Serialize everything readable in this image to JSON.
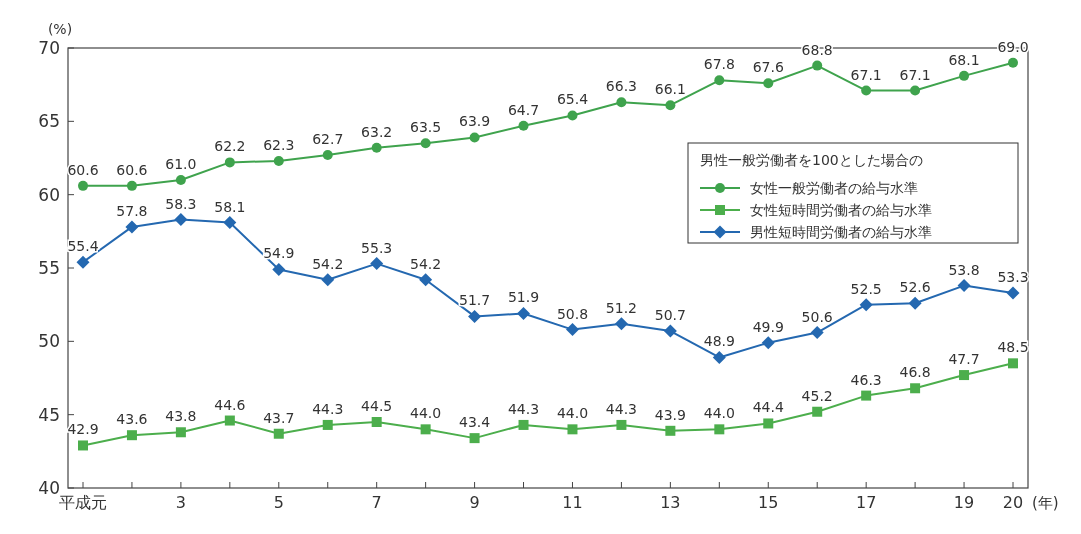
{
  "chart_data": {
    "type": "line",
    "ylabel": "(%)",
    "xlabel": "(年)",
    "legend_title": "男性一般労働者を100とした場合の",
    "legend": "top right",
    "grid": false,
    "ylim": [
      40,
      70
    ],
    "yticks": [
      40,
      45,
      50,
      55,
      60,
      65,
      70
    ],
    "categories": [
      "平成元",
      null,
      "3",
      null,
      "5",
      null,
      "7",
      null,
      "9",
      null,
      "11",
      null,
      "13",
      null,
      "15",
      null,
      "17",
      null,
      "19",
      "20"
    ],
    "series": [
      {
        "name": "女性一般労働者の給与水準",
        "color": "#3fa34d",
        "marker": "circle",
        "values": [
          60.6,
          60.6,
          61.0,
          62.2,
          62.3,
          62.7,
          63.2,
          63.5,
          63.9,
          64.7,
          65.4,
          66.3,
          66.1,
          67.8,
          67.6,
          68.8,
          67.1,
          67.1,
          68.1,
          69.0
        ],
        "value_labels": [
          "60.6",
          "60.6",
          "61.0",
          "62.2",
          "62.3",
          "62.7",
          "63.2",
          "63.5",
          "63.9",
          "64.7",
          "65.4",
          "66.3",
          "66.1",
          "67.8",
          "67.6",
          "68.8",
          "67.1",
          "67.1",
          "68.1",
          "69.0"
        ]
      },
      {
        "name": "女性短時間労働者の給与水準",
        "color": "#4cae4c",
        "marker": "square",
        "values": [
          42.9,
          43.6,
          43.8,
          44.6,
          43.7,
          44.3,
          44.5,
          44.0,
          43.4,
          44.3,
          44.0,
          44.3,
          43.9,
          44.0,
          44.4,
          45.2,
          46.3,
          46.8,
          47.7,
          48.5
        ],
        "value_labels": [
          "42.9",
          "43.6",
          "43.8",
          "44.6",
          "43.7",
          "44.3",
          "44.5",
          "44.0",
          "43.4",
          "44.3",
          "44.0",
          "44.3",
          "43.9",
          "44.0",
          "44.4",
          "45.2",
          "46.3",
          "46.8",
          "47.7",
          "48.5"
        ]
      },
      {
        "name": "男性短時間労働者の給与水準",
        "color": "#2468b0",
        "marker": "diamond",
        "values": [
          55.4,
          57.8,
          58.3,
          58.1,
          54.9,
          54.2,
          55.3,
          54.2,
          51.7,
          51.9,
          50.8,
          51.2,
          50.7,
          48.9,
          49.9,
          50.6,
          52.5,
          52.6,
          53.8,
          53.3
        ],
        "value_labels": [
          "55.4",
          "57.8",
          "58.3",
          "58.1",
          "54.9",
          "54.2",
          "55.3",
          "54.2",
          "51.7",
          "51.9",
          "50.8",
          "51.2",
          "50.7",
          "48.9",
          "49.9",
          "50.6",
          "52.5",
          "52.6",
          "53.8",
          "53.3"
        ]
      }
    ]
  }
}
